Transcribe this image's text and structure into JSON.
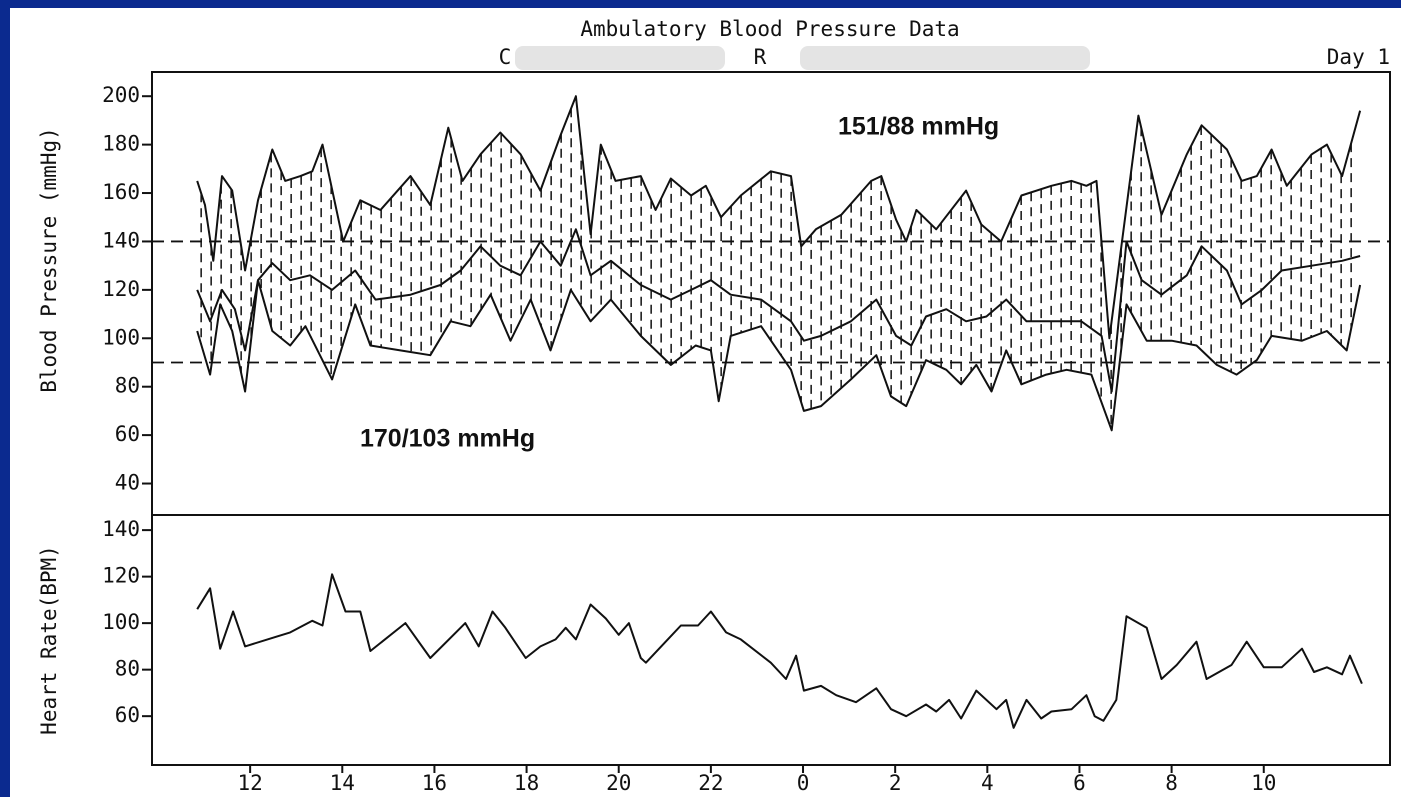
{
  "chart_data": [
    {
      "type": "line",
      "title": "Ambulatory Blood Pressure Data",
      "subtitle": [
        "C",
        "R"
      ],
      "corner_label": "Day 1",
      "ylabel": "Blood Pressure (mmHg)",
      "annotations": [
        "151/88 mmHg",
        "170/103 mmHg"
      ],
      "xlim": [
        9.87,
        36.74
      ],
      "ylim": [
        27,
        210
      ],
      "yticks": [
        40,
        60,
        80,
        100,
        120,
        140,
        160,
        180,
        200
      ],
      "reference_lines": [
        140,
        90
      ],
      "series": [
        {
          "color": "#111111",
          "x": [
            10.85,
            11.02,
            11.2,
            11.39,
            11.61,
            11.89,
            12.17,
            12.48,
            12.76,
            13.09,
            13.35,
            13.57,
            14.02,
            14.39,
            14.83,
            15.48,
            15.91,
            16.3,
            16.61,
            17.0,
            17.43,
            17.87,
            18.3,
            18.74,
            19.07,
            19.39,
            19.61,
            19.93,
            20.48,
            20.8,
            21.13,
            21.57,
            21.89,
            22.22,
            22.65,
            23.3,
            23.74,
            23.96,
            24.28,
            24.83,
            25.48,
            25.7,
            26.02,
            26.24,
            26.46,
            26.89,
            27.54,
            27.87,
            28.3,
            28.74,
            29.39,
            29.83,
            30.15,
            30.37,
            30.65,
            31.28,
            31.78,
            32.33,
            32.65,
            33.2,
            33.52,
            33.85,
            34.17,
            34.5,
            35.04,
            35.37,
            35.7,
            36.09
          ],
          "values": [
            165,
            155,
            132,
            167,
            161,
            128,
            157,
            178,
            165,
            167,
            169,
            180,
            140,
            157,
            153,
            167,
            155,
            187,
            165,
            176,
            185,
            176,
            161,
            184,
            200,
            143,
            180,
            165,
            167,
            153,
            166,
            159,
            163,
            150,
            159,
            169,
            167,
            138,
            145,
            151,
            165,
            167,
            149,
            140,
            153,
            145,
            161,
            147,
            140,
            159,
            163,
            165,
            163,
            165,
            100,
            192,
            151,
            176,
            188,
            178,
            165,
            167,
            178,
            163,
            176,
            180,
            167,
            194
          ]
        },
        {
          "color": "#111111",
          "x": [
            10.85,
            11.13,
            11.39,
            11.67,
            11.89,
            12.17,
            12.48,
            12.87,
            13.3,
            13.78,
            14.28,
            14.72,
            15.48,
            16.13,
            16.57,
            17.0,
            17.43,
            17.87,
            18.3,
            18.74,
            19.07,
            19.39,
            19.83,
            20.48,
            21.13,
            21.57,
            22.0,
            22.43,
            23.09,
            23.74,
            24.02,
            24.39,
            25.04,
            25.59,
            26.02,
            26.35,
            26.67,
            27.11,
            27.54,
            27.98,
            28.41,
            28.85,
            29.39,
            30.04,
            30.48,
            30.7,
            31.02,
            31.35,
            31.78,
            32.33,
            32.65,
            33.2,
            33.52,
            33.96,
            34.39,
            35.04,
            35.7,
            36.09
          ],
          "values": [
            120,
            107,
            120,
            112,
            95,
            124,
            131,
            124,
            126,
            120,
            128,
            116,
            118,
            122,
            128,
            138,
            130,
            126,
            140,
            130,
            145,
            126,
            132,
            122,
            116,
            120,
            124,
            118,
            116,
            107,
            99,
            101,
            107,
            116,
            101,
            97,
            109,
            112,
            107,
            109,
            116,
            107,
            107,
            107,
            101,
            78,
            140,
            124,
            118,
            126,
            138,
            128,
            114,
            120,
            128,
            130,
            132,
            134
          ]
        },
        {
          "color": "#111111",
          "x": [
            10.85,
            11.13,
            11.35,
            11.61,
            11.89,
            12.17,
            12.48,
            12.87,
            13.2,
            13.78,
            14.28,
            14.61,
            15.26,
            15.91,
            16.35,
            16.78,
            17.22,
            17.65,
            18.09,
            18.52,
            18.96,
            19.39,
            19.83,
            20.48,
            21.13,
            21.67,
            22.0,
            22.17,
            22.43,
            23.09,
            23.74,
            24.02,
            24.39,
            25.04,
            25.59,
            25.91,
            26.24,
            26.67,
            27.11,
            27.43,
            27.76,
            28.09,
            28.41,
            28.74,
            29.28,
            29.72,
            30.26,
            30.7,
            31.02,
            31.46,
            32.0,
            32.54,
            32.98,
            33.41,
            33.85,
            34.17,
            34.83,
            35.37,
            35.8,
            36.09
          ],
          "values": [
            103,
            85,
            114,
            103,
            78,
            124,
            103,
            97,
            105,
            83,
            114,
            97,
            95,
            93,
            107,
            105,
            118,
            99,
            116,
            95,
            120,
            107,
            116,
            101,
            89,
            97,
            95,
            74,
            101,
            105,
            87,
            70,
            72,
            83,
            93,
            76,
            72,
            91,
            87,
            81,
            89,
            78,
            95,
            81,
            85,
            87,
            85,
            62,
            114,
            99,
            99,
            97,
            89,
            85,
            91,
            101,
            99,
            103,
            95,
            122
          ]
        }
      ]
    },
    {
      "type": "line",
      "ylabel": "Heart Rate(BPM)",
      "xlim": [
        9.87,
        36.74
      ],
      "ylim": [
        39,
        146.5
      ],
      "yticks": [
        60,
        80,
        100,
        120,
        140
      ],
      "xticks": [
        12,
        14,
        16,
        18,
        20,
        22,
        {
          "value": 24,
          "label": "0"
        },
        {
          "value": 26,
          "label": "2"
        },
        {
          "value": 28,
          "label": "4"
        },
        {
          "value": 30,
          "label": "6"
        },
        {
          "value": 32,
          "label": "8"
        },
        {
          "value": 34,
          "label": "10"
        }
      ],
      "series": [
        {
          "color": "#111111",
          "x": [
            10.85,
            11.13,
            11.35,
            11.63,
            11.89,
            12.87,
            13.35,
            13.57,
            13.78,
            14.07,
            14.39,
            14.61,
            15.37,
            15.91,
            16.67,
            16.96,
            17.26,
            17.54,
            17.98,
            18.3,
            18.63,
            18.85,
            19.07,
            19.39,
            19.72,
            20.0,
            20.22,
            20.48,
            20.59,
            21.35,
            21.72,
            22.0,
            22.33,
            22.65,
            23.3,
            23.63,
            23.85,
            24.02,
            24.39,
            24.72,
            25.15,
            25.59,
            25.91,
            26.24,
            26.67,
            26.89,
            27.17,
            27.43,
            27.76,
            28.2,
            28.41,
            28.57,
            28.85,
            29.17,
            29.39,
            29.83,
            30.15,
            30.33,
            30.52,
            30.8,
            31.02,
            31.46,
            31.78,
            32.11,
            32.54,
            32.76,
            33.3,
            33.63,
            34.0,
            34.39,
            34.83,
            35.09,
            35.37,
            35.7,
            35.87,
            36.13
          ],
          "values": [
            106,
            115,
            89,
            105,
            90,
            96,
            101,
            99,
            121,
            105,
            105,
            88,
            100,
            85,
            100,
            90,
            105,
            98,
            85,
            90,
            93,
            98,
            93,
            108,
            102,
            95,
            100,
            85,
            83,
            99,
            99,
            105,
            96,
            93,
            83,
            76,
            86,
            71,
            73,
            69,
            66,
            72,
            63,
            60,
            65,
            62,
            67,
            59,
            71,
            63,
            67,
            55,
            67,
            59,
            62,
            63,
            69,
            60,
            58,
            67,
            103,
            98,
            76,
            82,
            92,
            76,
            82,
            92,
            81,
            81,
            89,
            79,
            81,
            78,
            86,
            74
          ]
        }
      ]
    }
  ]
}
